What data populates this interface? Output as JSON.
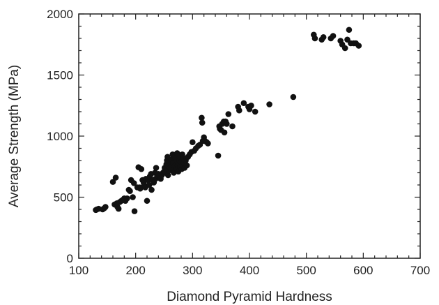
{
  "chart_data": {
    "type": "scatter",
    "title": "",
    "xlabel": "Diamond Pyramid Hardness",
    "ylabel": "Average Strength (MPa)",
    "xlim": [
      100,
      700
    ],
    "ylim": [
      0,
      2000
    ],
    "x_ticks": [
      100,
      200,
      300,
      400,
      500,
      600,
      700
    ],
    "y_ticks": [
      0,
      500,
      1000,
      1500,
      2000
    ],
    "x_minor_step": 20,
    "y_minor_step": 100,
    "grid": false,
    "legend": "none",
    "marker_color": "#111111",
    "points": [
      [
        130,
        395
      ],
      [
        132,
        400
      ],
      [
        135,
        405
      ],
      [
        142,
        400
      ],
      [
        145,
        410
      ],
      [
        147,
        420
      ],
      [
        160,
        625
      ],
      [
        165,
        660
      ],
      [
        163,
        440
      ],
      [
        167,
        450
      ],
      [
        168,
        420
      ],
      [
        170,
        405
      ],
      [
        172,
        460
      ],
      [
        175,
        470
      ],
      [
        178,
        480
      ],
      [
        180,
        490
      ],
      [
        182,
        470
      ],
      [
        185,
        490
      ],
      [
        188,
        560
      ],
      [
        190,
        550
      ],
      [
        192,
        640
      ],
      [
        195,
        500
      ],
      [
        197,
        615
      ],
      [
        198,
        385
      ],
      [
        203,
        580
      ],
      [
        205,
        745
      ],
      [
        207,
        580
      ],
      [
        208,
        570
      ],
      [
        210,
        730
      ],
      [
        212,
        640
      ],
      [
        214,
        620
      ],
      [
        215,
        600
      ],
      [
        217,
        580
      ],
      [
        218,
        650
      ],
      [
        220,
        470
      ],
      [
        222,
        640
      ],
      [
        224,
        600
      ],
      [
        225,
        670
      ],
      [
        227,
        690
      ],
      [
        228,
        560
      ],
      [
        230,
        640
      ],
      [
        232,
        620
      ],
      [
        234,
        700
      ],
      [
        235,
        650
      ],
      [
        236,
        740
      ],
      [
        238,
        680
      ],
      [
        240,
        690
      ],
      [
        242,
        670
      ],
      [
        244,
        650
      ],
      [
        246,
        680
      ],
      [
        248,
        700
      ],
      [
        250,
        710
      ],
      [
        251,
        740
      ],
      [
        252,
        700
      ],
      [
        254,
        770
      ],
      [
        255,
        800
      ],
      [
        256,
        830
      ],
      [
        257,
        680
      ],
      [
        258,
        720
      ],
      [
        260,
        760
      ],
      [
        261,
        740
      ],
      [
        262,
        790
      ],
      [
        263,
        720
      ],
      [
        264,
        810
      ],
      [
        265,
        850
      ],
      [
        266,
        780
      ],
      [
        267,
        700
      ],
      [
        268,
        750
      ],
      [
        269,
        830
      ],
      [
        270,
        820
      ],
      [
        271,
        740
      ],
      [
        272,
        800
      ],
      [
        273,
        860
      ],
      [
        274,
        760
      ],
      [
        275,
        710
      ],
      [
        276,
        840
      ],
      [
        277,
        800
      ],
      [
        278,
        750
      ],
      [
        279,
        830
      ],
      [
        280,
        790
      ],
      [
        281,
        730
      ],
      [
        282,
        850
      ],
      [
        283,
        760
      ],
      [
        284,
        820
      ],
      [
        285,
        780
      ],
      [
        286,
        740
      ],
      [
        288,
        800
      ],
      [
        290,
        760
      ],
      [
        292,
        830
      ],
      [
        295,
        850
      ],
      [
        298,
        870
      ],
      [
        300,
        950
      ],
      [
        303,
        880
      ],
      [
        306,
        900
      ],
      [
        310,
        920
      ],
      [
        313,
        930
      ],
      [
        316,
        1150
      ],
      [
        317,
        1110
      ],
      [
        318,
        960
      ],
      [
        320,
        990
      ],
      [
        322,
        960
      ],
      [
        325,
        950
      ],
      [
        327,
        940
      ],
      [
        345,
        840
      ],
      [
        347,
        1080
      ],
      [
        348,
        1060
      ],
      [
        350,
        1050
      ],
      [
        352,
        1100
      ],
      [
        355,
        1120
      ],
      [
        356,
        1030
      ],
      [
        358,
        1120
      ],
      [
        360,
        1100
      ],
      [
        363,
        1180
      ],
      [
        370,
        1080
      ],
      [
        380,
        1240
      ],
      [
        382,
        1210
      ],
      [
        390,
        1270
      ],
      [
        398,
        1240
      ],
      [
        400,
        1220
      ],
      [
        403,
        1250
      ],
      [
        410,
        1200
      ],
      [
        435,
        1260
      ],
      [
        477,
        1320
      ],
      [
        513,
        1830
      ],
      [
        515,
        1800
      ],
      [
        527,
        1790
      ],
      [
        530,
        1810
      ],
      [
        543,
        1800
      ],
      [
        547,
        1820
      ],
      [
        560,
        1780
      ],
      [
        563,
        1750
      ],
      [
        568,
        1720
      ],
      [
        572,
        1790
      ],
      [
        575,
        1870
      ],
      [
        578,
        1760
      ],
      [
        583,
        1760
      ],
      [
        587,
        1760
      ],
      [
        592,
        1740
      ]
    ]
  }
}
